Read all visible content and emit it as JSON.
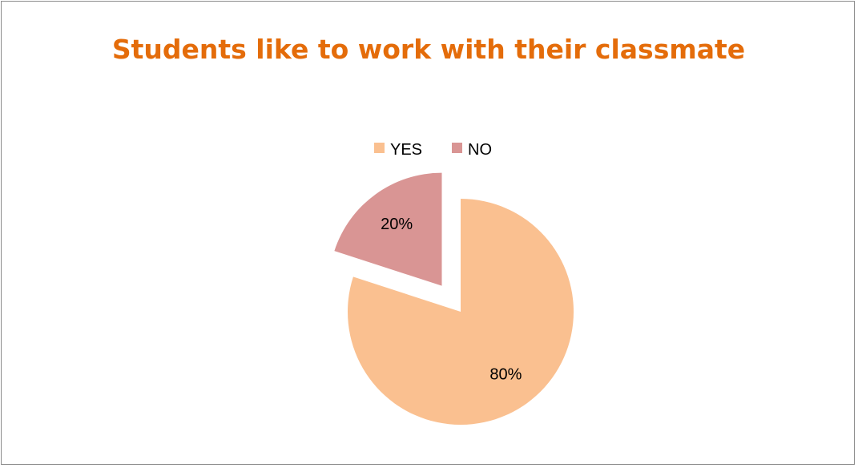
{
  "chart_data": {
    "type": "pie",
    "title": "Students like to work with their classmate",
    "categories": [
      "YES",
      "NO"
    ],
    "values": [
      80,
      20
    ],
    "data_labels": [
      "80%",
      "20%"
    ],
    "colors": [
      "#fac090",
      "#d99594"
    ],
    "exploded": [
      "NO"
    ],
    "legend": {
      "position": "top",
      "entries": [
        "YES",
        "NO"
      ]
    }
  }
}
